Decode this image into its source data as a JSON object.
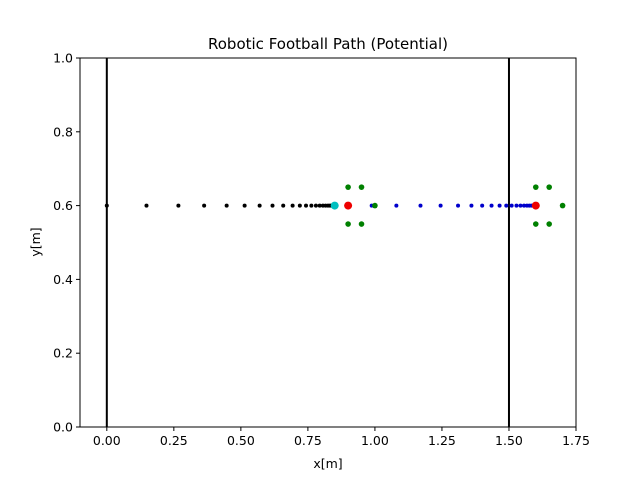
{
  "chart_data": {
    "type": "scatter",
    "title": "Robotic Football Path  (Potential)",
    "xlabel": "x[m]",
    "ylabel": "y[m]",
    "xlim": [
      -0.1,
      1.75
    ],
    "ylim": [
      0.0,
      1.0
    ],
    "grid": false,
    "xticks": [
      0.0,
      0.25,
      0.5,
      0.75,
      1.0,
      1.25,
      1.5,
      1.75
    ],
    "xtick_labels": [
      "0.00",
      "0.25",
      "0.50",
      "0.75",
      "1.00",
      "1.25",
      "1.50",
      "1.75"
    ],
    "yticks": [
      0.0,
      0.2,
      0.4,
      0.6,
      0.8,
      1.0
    ],
    "ytick_labels": [
      "0.0",
      "0.2",
      "0.4",
      "0.6",
      "0.8",
      "1.0"
    ],
    "vertical_lines": [
      {
        "x": 0.0,
        "color": "#000000"
      },
      {
        "x": 1.5,
        "color": "#000000"
      }
    ],
    "series": [
      {
        "color": "#000000",
        "marker": "small",
        "points": [
          [
            0.0,
            0.6
          ],
          [
            0.148,
            0.6
          ],
          [
            0.267,
            0.6
          ],
          [
            0.363,
            0.6
          ],
          [
            0.447,
            0.6
          ],
          [
            0.514,
            0.6
          ],
          [
            0.57,
            0.6
          ],
          [
            0.618,
            0.6
          ],
          [
            0.658,
            0.6
          ],
          [
            0.693,
            0.6
          ],
          [
            0.72,
            0.6
          ],
          [
            0.743,
            0.6
          ],
          [
            0.763,
            0.6
          ],
          [
            0.78,
            0.6
          ],
          [
            0.794,
            0.6
          ],
          [
            0.806,
            0.6
          ],
          [
            0.816,
            0.6
          ],
          [
            0.825,
            0.6
          ],
          [
            0.832,
            0.6
          ],
          [
            0.838,
            0.6
          ],
          [
            0.843,
            0.6
          ],
          [
            0.847,
            0.6
          ]
        ]
      },
      {
        "color": "#0000cc",
        "marker": "small",
        "points": [
          [
            0.988,
            0.6
          ],
          [
            1.08,
            0.6
          ],
          [
            1.17,
            0.6
          ],
          [
            1.245,
            0.6
          ],
          [
            1.31,
            0.6
          ],
          [
            1.36,
            0.6
          ],
          [
            1.4,
            0.6
          ],
          [
            1.435,
            0.6
          ],
          [
            1.465,
            0.6
          ],
          [
            1.49,
            0.6
          ],
          [
            1.51,
            0.6
          ],
          [
            1.528,
            0.6
          ],
          [
            1.543,
            0.6
          ],
          [
            1.556,
            0.6
          ],
          [
            1.567,
            0.6
          ],
          [
            1.576,
            0.6
          ],
          [
            1.584,
            0.6
          ],
          [
            1.59,
            0.6
          ]
        ]
      },
      {
        "color": "#008000",
        "marker": "medium",
        "points": [
          [
            0.9,
            0.65
          ],
          [
            0.95,
            0.65
          ],
          [
            0.9,
            0.55
          ],
          [
            0.95,
            0.55
          ],
          [
            1.0,
            0.6
          ],
          [
            1.6,
            0.65
          ],
          [
            1.65,
            0.65
          ],
          [
            1.6,
            0.55
          ],
          [
            1.65,
            0.55
          ],
          [
            1.7,
            0.6
          ]
        ]
      },
      {
        "color": "#ee0000",
        "marker": "large",
        "points": [
          [
            0.9,
            0.6
          ],
          [
            1.6,
            0.6
          ]
        ]
      },
      {
        "color": "#00bfbf",
        "marker": "large",
        "points": [
          [
            0.85,
            0.6
          ]
        ]
      }
    ]
  }
}
